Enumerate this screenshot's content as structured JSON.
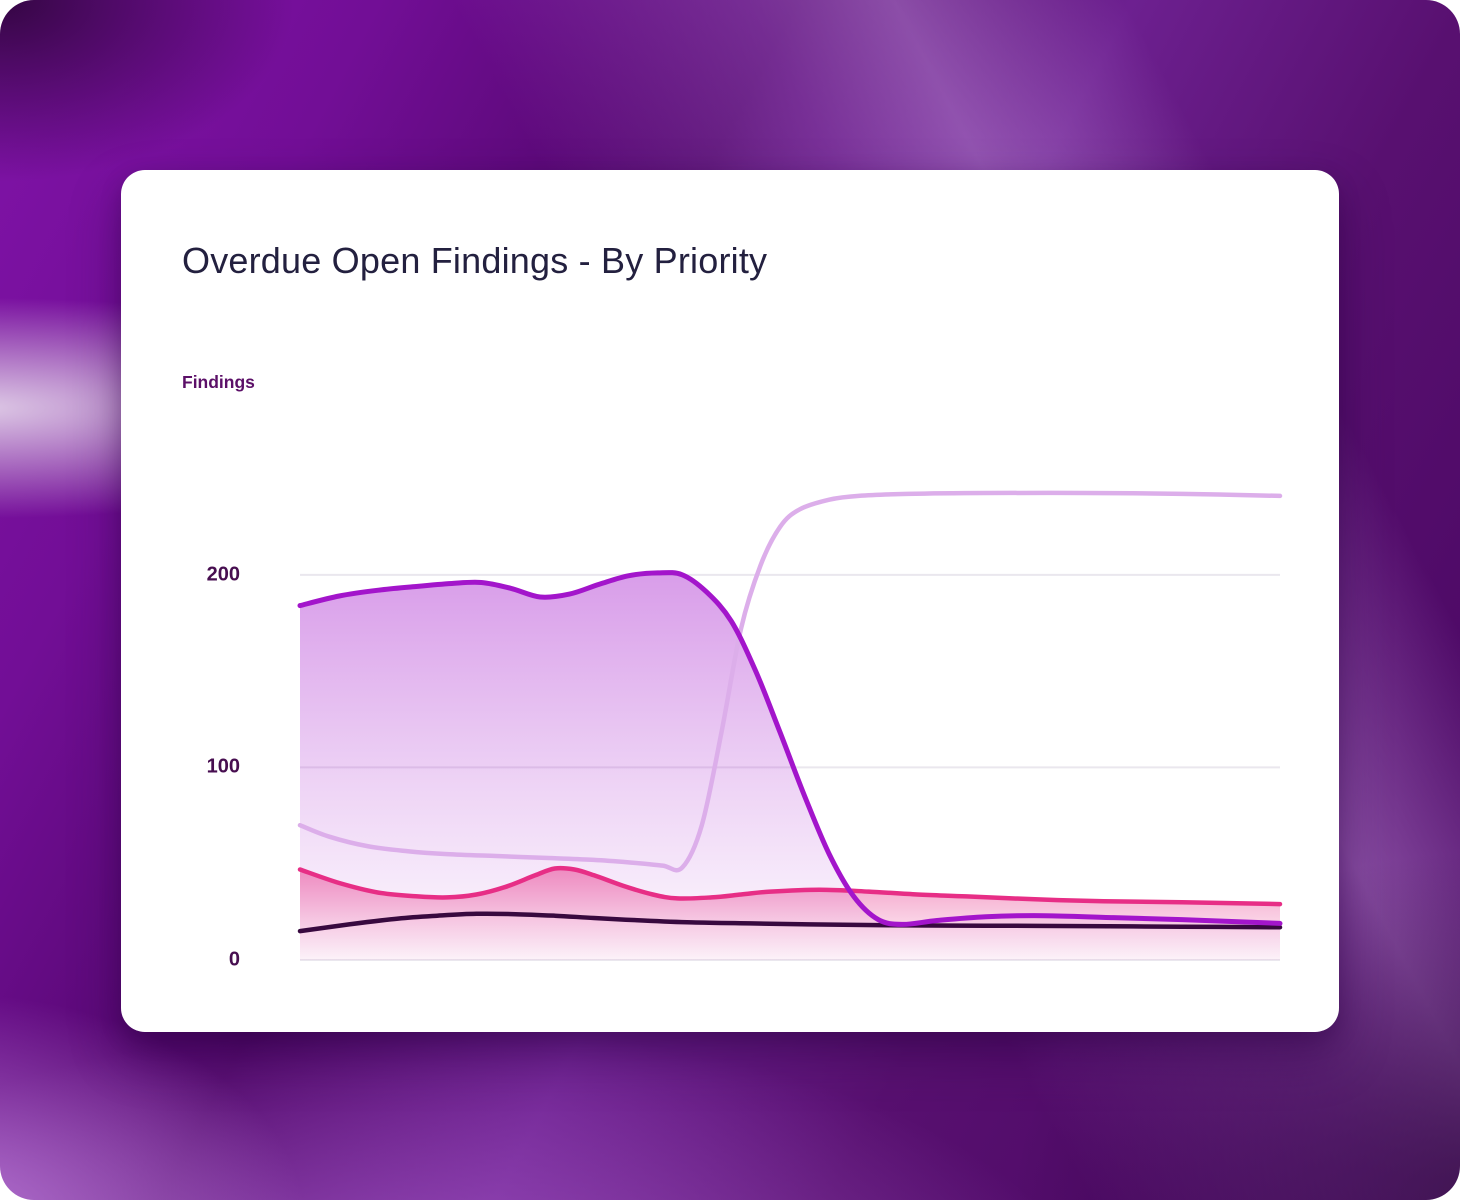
{
  "card": {
    "title": "Overdue Open Findings - By Priority",
    "y_axis_title": "Findings"
  },
  "palette": {
    "card_background": "#ffffff",
    "title_color": "#23203f",
    "axis_title_color": "#5c1068",
    "tick_color": "#470e50",
    "gridline_color": "#eae7ee",
    "background_purple_dark": "#470560",
    "background_purple_mid": "#6d2090",
    "background_purple_light": "#c488e0"
  },
  "chart_data": {
    "type": "area",
    "title": "Overdue Open Findings - By Priority",
    "ylabel": "Findings",
    "xlabel": "",
    "ylim": [
      0,
      270
    ],
    "yticks": [
      0,
      100,
      200
    ],
    "x_range": [
      0,
      1
    ],
    "x_tick_labels": [],
    "grid": "horizontal",
    "legend_position": "none",
    "fill_order": [
      "purple",
      "pink"
    ],
    "line_order": [
      "lavender",
      "dark",
      "pink",
      "purple"
    ],
    "series": [
      {
        "name": "purple",
        "color": "#a315cb",
        "stroke_width": 5,
        "fill": true,
        "fill_top_opacity": 0.42,
        "fill_bottom_opacity": 0.02,
        "points": [
          [
            0,
            184
          ],
          [
            0.04,
            189
          ],
          [
            0.08,
            192
          ],
          [
            0.12,
            194
          ],
          [
            0.155,
            195.5
          ],
          [
            0.185,
            196
          ],
          [
            0.215,
            193
          ],
          [
            0.245,
            188.5
          ],
          [
            0.275,
            190
          ],
          [
            0.305,
            195
          ],
          [
            0.335,
            199.5
          ],
          [
            0.365,
            201
          ],
          [
            0.39,
            200
          ],
          [
            0.415,
            191
          ],
          [
            0.44,
            176
          ],
          [
            0.465,
            150
          ],
          [
            0.49,
            118
          ],
          [
            0.515,
            85
          ],
          [
            0.54,
            55
          ],
          [
            0.565,
            33
          ],
          [
            0.59,
            21
          ],
          [
            0.615,
            18.5
          ],
          [
            0.65,
            20.5
          ],
          [
            0.7,
            22.5
          ],
          [
            0.76,
            23
          ],
          [
            0.83,
            22
          ],
          [
            0.9,
            21
          ],
          [
            1,
            19
          ]
        ]
      },
      {
        "name": "pink",
        "color": "#e72e86",
        "stroke_width": 4.5,
        "fill": true,
        "fill_top_opacity": 0.5,
        "fill_bottom_opacity": 0.04,
        "points": [
          [
            0,
            47
          ],
          [
            0.04,
            40
          ],
          [
            0.08,
            35
          ],
          [
            0.12,
            33
          ],
          [
            0.15,
            32.5
          ],
          [
            0.18,
            34
          ],
          [
            0.21,
            38
          ],
          [
            0.24,
            44
          ],
          [
            0.26,
            47.5
          ],
          [
            0.28,
            47
          ],
          [
            0.3,
            44
          ],
          [
            0.33,
            38.5
          ],
          [
            0.36,
            34
          ],
          [
            0.385,
            32
          ],
          [
            0.42,
            32.5
          ],
          [
            0.45,
            34
          ],
          [
            0.48,
            35.5
          ],
          [
            0.53,
            36.5
          ],
          [
            0.58,
            35.5
          ],
          [
            0.63,
            34
          ],
          [
            0.68,
            33
          ],
          [
            0.75,
            31.5
          ],
          [
            0.82,
            30.5
          ],
          [
            0.9,
            30
          ],
          [
            1,
            29
          ]
        ]
      },
      {
        "name": "lavender",
        "color": "#dcaeea",
        "stroke_width": 4.5,
        "fill": false,
        "points": [
          [
            0,
            70
          ],
          [
            0.03,
            64
          ],
          [
            0.07,
            59
          ],
          [
            0.11,
            56.5
          ],
          [
            0.15,
            55
          ],
          [
            0.2,
            54
          ],
          [
            0.25,
            53
          ],
          [
            0.3,
            52
          ],
          [
            0.34,
            50.5
          ],
          [
            0.37,
            49
          ],
          [
            0.39,
            48
          ],
          [
            0.41,
            70
          ],
          [
            0.43,
            118
          ],
          [
            0.45,
            172
          ],
          [
            0.47,
            205
          ],
          [
            0.49,
            225
          ],
          [
            0.51,
            234
          ],
          [
            0.54,
            239
          ],
          [
            0.57,
            241
          ],
          [
            0.62,
            242
          ],
          [
            0.7,
            242.5
          ],
          [
            0.8,
            242.5
          ],
          [
            0.9,
            242
          ],
          [
            1,
            241
          ]
        ]
      },
      {
        "name": "dark",
        "color": "#38093f",
        "stroke_width": 4.5,
        "fill": false,
        "points": [
          [
            0,
            15
          ],
          [
            0.05,
            18.5
          ],
          [
            0.1,
            21.5
          ],
          [
            0.14,
            23
          ],
          [
            0.18,
            24
          ],
          [
            0.22,
            23.8
          ],
          [
            0.26,
            23
          ],
          [
            0.3,
            21.8
          ],
          [
            0.35,
            20.5
          ],
          [
            0.4,
            19.5
          ],
          [
            0.46,
            19
          ],
          [
            0.52,
            18.5
          ],
          [
            0.6,
            18
          ],
          [
            0.7,
            17.8
          ],
          [
            0.8,
            17.6
          ],
          [
            0.9,
            17.3
          ],
          [
            1,
            17
          ]
        ]
      }
    ]
  }
}
